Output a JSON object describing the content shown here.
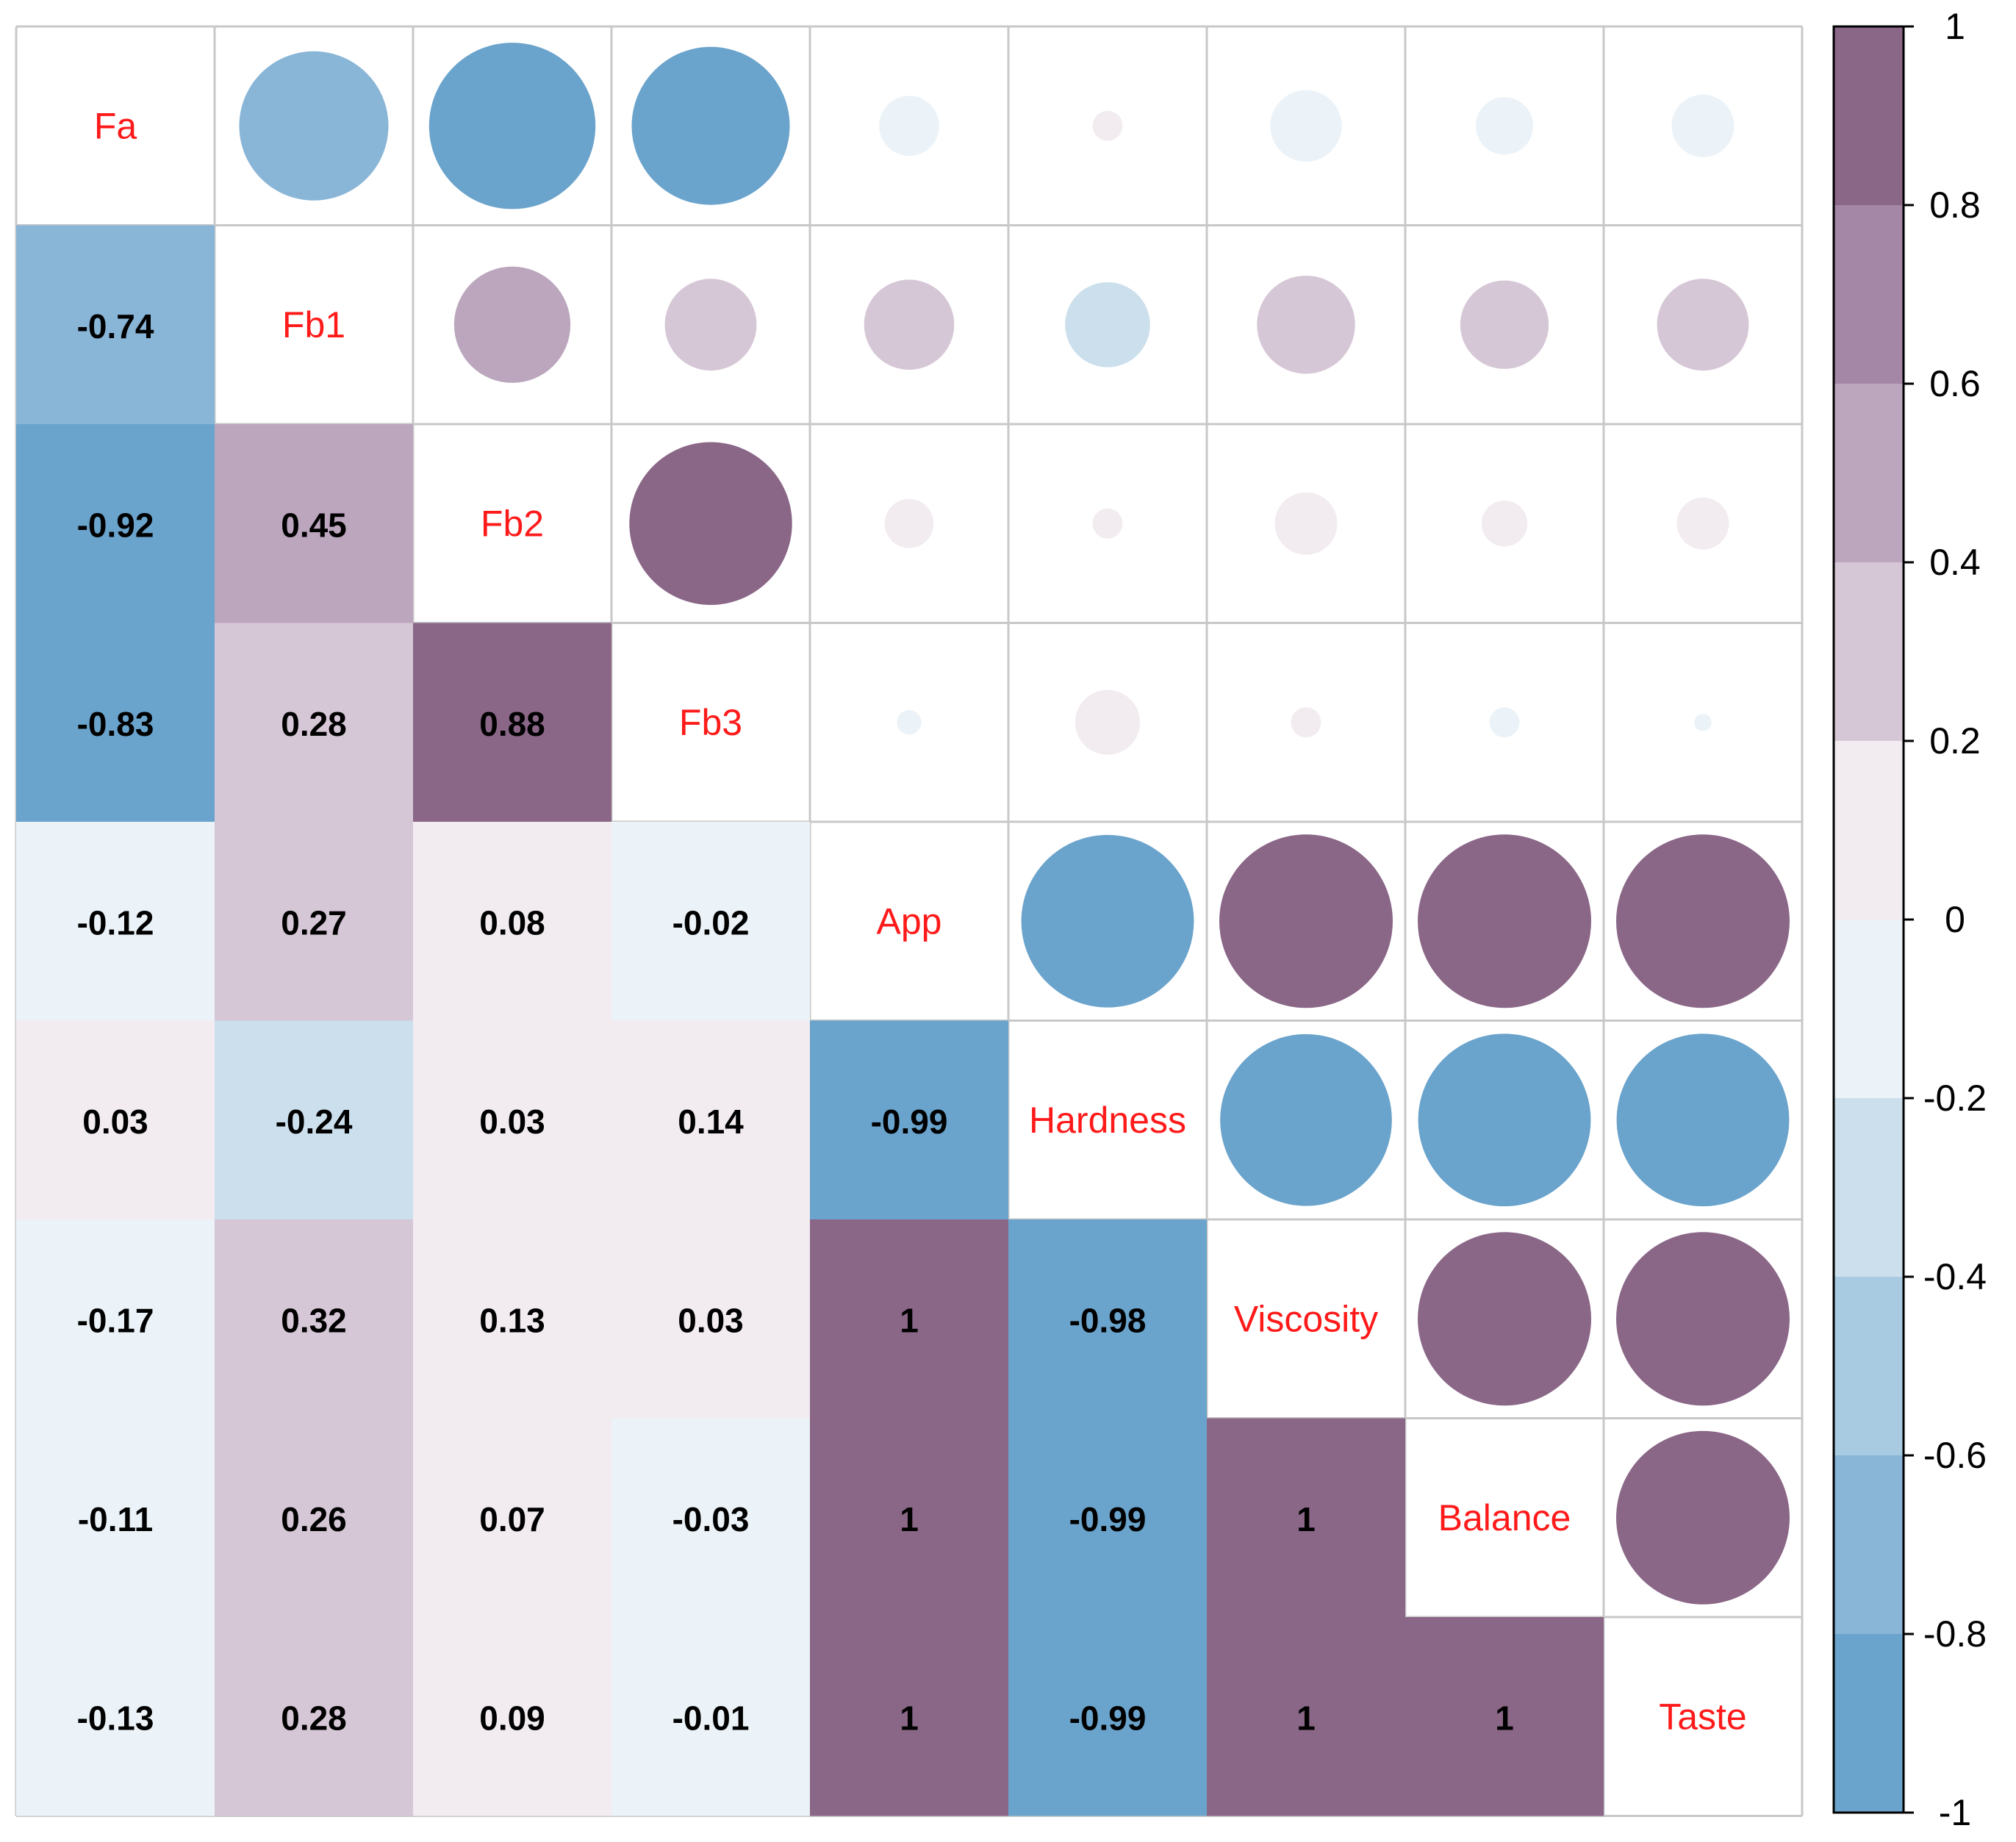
{
  "chart_data": {
    "type": "heatmap",
    "title": "",
    "variables": [
      "Fa",
      "Fb1",
      "Fb2",
      "Fb3",
      "App",
      "Hardness",
      "Viscosity",
      "Balance",
      "Taste"
    ],
    "matrix": [
      [
        1,
        -0.74,
        -0.92,
        -0.83,
        -0.12,
        0.03,
        -0.17,
        -0.11,
        -0.13
      ],
      [
        -0.74,
        1,
        0.45,
        0.28,
        0.27,
        -0.24,
        0.32,
        0.26,
        0.28
      ],
      [
        -0.92,
        0.45,
        1,
        0.88,
        0.08,
        0.03,
        0.13,
        0.07,
        0.09
      ],
      [
        -0.83,
        0.28,
        0.88,
        1,
        -0.02,
        0.14,
        0.03,
        -0.03,
        -0.01
      ],
      [
        -0.12,
        0.27,
        0.08,
        -0.02,
        1,
        -0.99,
        1,
        1,
        1
      ],
      [
        0.03,
        -0.24,
        0.03,
        0.14,
        -0.99,
        1,
        -0.98,
        -0.99,
        -0.99
      ],
      [
        -0.17,
        0.32,
        0.13,
        0.03,
        1,
        -0.98,
        1,
        1,
        1
      ],
      [
        -0.11,
        0.26,
        0.07,
        -0.03,
        1,
        -0.99,
        1,
        1,
        1
      ],
      [
        -0.13,
        0.28,
        0.09,
        -0.01,
        1,
        -0.99,
        1,
        1,
        1
      ]
    ],
    "value_labels": [
      [
        "",
        "",
        "",
        "",
        "",
        "",
        "",
        "",
        ""
      ],
      [
        "-0.74",
        "",
        "",
        "",
        "",
        "",
        "",
        "",
        ""
      ],
      [
        "-0.92",
        "0.45",
        "",
        "",
        "",
        "",
        "",
        "",
        ""
      ],
      [
        "-0.83",
        "0.28",
        "0.88",
        "",
        "",
        "",
        "",
        "",
        ""
      ],
      [
        "-0.12",
        "0.27",
        "0.08",
        "-0.02",
        "",
        "",
        "",
        "",
        ""
      ],
      [
        "0.03",
        "-0.24",
        "0.03",
        "0.14",
        "-0.99",
        "",
        "",
        "",
        ""
      ],
      [
        "-0.17",
        "0.32",
        "0.13",
        "0.03",
        "1",
        "-0.98",
        "",
        "",
        ""
      ],
      [
        "-0.11",
        "0.26",
        "0.07",
        "-0.03",
        "1",
        "-0.99",
        "1",
        "",
        ""
      ],
      [
        "-0.13",
        "0.28",
        "0.09",
        "-0.01",
        "1",
        "-0.99",
        "1",
        "1",
        ""
      ]
    ],
    "lower_triangle": "color-filled squares with coefficient labels",
    "upper_triangle": "circles sized and colored by coefficient",
    "diagonal": "variable names",
    "legend": {
      "position": "right",
      "range": [
        -1,
        1
      ],
      "ticks": [
        "1",
        "0.8",
        "0.6",
        "0.4",
        "0.2",
        "0",
        "-0.2",
        "-0.4",
        "-0.6",
        "-0.8",
        "-1"
      ],
      "bands": [
        {
          "from": -1.0,
          "to": -0.8,
          "color": "#6aa3cb"
        },
        {
          "from": -0.8,
          "to": -0.6,
          "color": "#89b5d7"
        },
        {
          "from": -0.6,
          "to": -0.4,
          "color": "#a9cbe2"
        },
        {
          "from": -0.4,
          "to": -0.2,
          "color": "#cbdfec"
        },
        {
          "from": -0.2,
          "to": 0.0,
          "color": "#ebf3f8"
        },
        {
          "from": 0.0,
          "to": 0.2,
          "color": "#f2ecf1"
        },
        {
          "from": 0.2,
          "to": 0.4,
          "color": "#d6c7d6"
        },
        {
          "from": 0.4,
          "to": 0.6,
          "color": "#bba6be"
        },
        {
          "from": 0.6,
          "to": 0.8,
          "color": "#a486a6"
        },
        {
          "from": 0.8,
          "to": 1.0,
          "color": "#8a6687"
        }
      ]
    },
    "colors": {
      "variable_label": "#ff1a1a",
      "value_label": "#000000",
      "grid": "#c8c8c8",
      "background": "#ffffff"
    }
  }
}
